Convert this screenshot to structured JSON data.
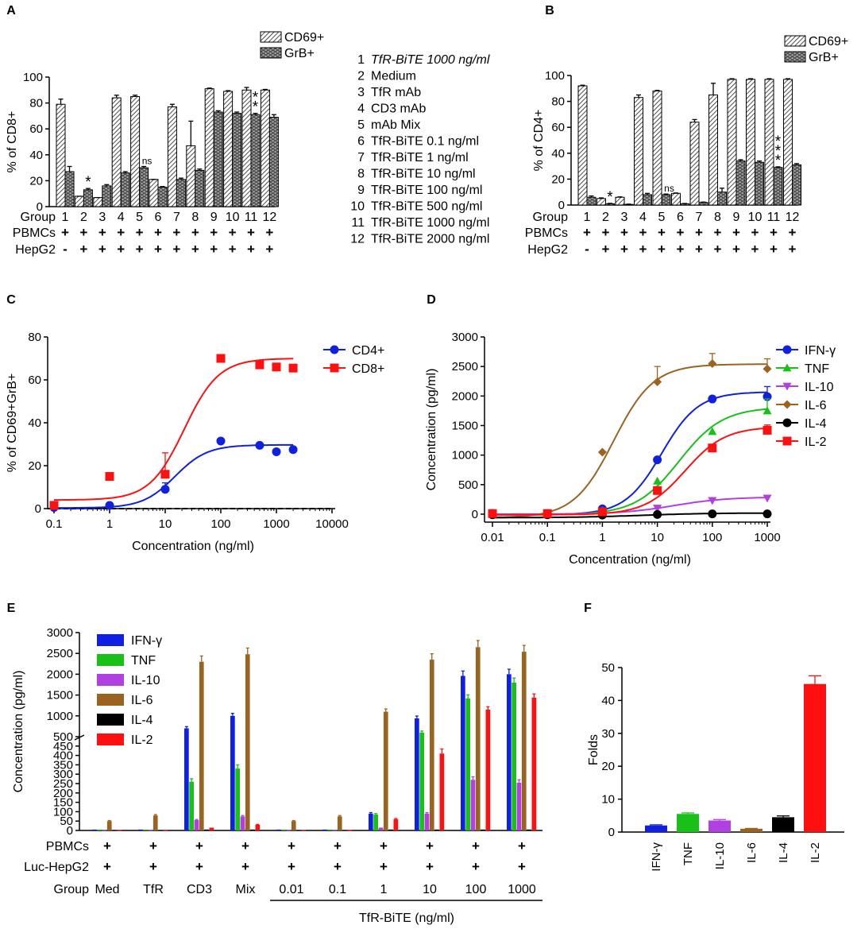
{
  "colors": {
    "IFN": "#1020e0",
    "TNF": "#18c018",
    "IL10": "#b040e0",
    "IL6": "#9a6420",
    "IL4": "#000000",
    "IL2": "#ff1010"
  },
  "chart_data": [
    {
      "panel": "A",
      "type": "bar",
      "ylabel": "% of CD8+",
      "ylim": [
        0,
        100
      ],
      "yticks": [
        0,
        20,
        40,
        60,
        80,
        100
      ],
      "legend": [
        "CD69+",
        "GrB+"
      ],
      "groups": [
        "1",
        "2",
        "3",
        "4",
        "5",
        "6",
        "7",
        "8",
        "9",
        "10",
        "11",
        "12"
      ],
      "row_labels": [
        "Group",
        "PBMCs",
        "HepG2"
      ],
      "pbmcs": [
        "+",
        "+",
        "+",
        "+",
        "+",
        "+",
        "+",
        "+",
        "+",
        "+",
        "+",
        "+"
      ],
      "hepg2": [
        "-",
        "+",
        "+",
        "+",
        "+",
        "+",
        "+",
        "+",
        "+",
        "+",
        "+",
        "+"
      ],
      "series": [
        {
          "name": "CD69+",
          "values": [
            79,
            8,
            7,
            84,
            85,
            21,
            77,
            47,
            91,
            89,
            90,
            90
          ],
          "errors": [
            4,
            0,
            0,
            2,
            1,
            0,
            2,
            19,
            0.5,
            0.5,
            2,
            0.5
          ]
        },
        {
          "name": "GrB+",
          "values": [
            27,
            13,
            16,
            26,
            30,
            15,
            21,
            28,
            73,
            72,
            71,
            69
          ],
          "errors": [
            4,
            1,
            1,
            1,
            1,
            0.5,
            1,
            1,
            1,
            1,
            1,
            2
          ]
        }
      ],
      "annotations": [
        {
          "group": "2",
          "text": "*"
        },
        {
          "group": "5",
          "text": "ns"
        },
        {
          "group": "11",
          "text": "*"
        },
        {
          "group": "11",
          "text": "*"
        }
      ],
      "group_key": [
        {
          "n": "1",
          "label": "TfR-BiTE 1000 ng/ml"
        },
        {
          "n": "2",
          "label": "Medium"
        },
        {
          "n": "3",
          "label": "TfR mAb"
        },
        {
          "n": "4",
          "label": "CD3 mAb"
        },
        {
          "n": "5",
          "label": "mAb Mix"
        },
        {
          "n": "6",
          "label": "TfR-BiTE 0.1 ng/ml"
        },
        {
          "n": "7",
          "label": "TfR-BiTE 1 ng/ml"
        },
        {
          "n": "8",
          "label": "TfR-BiTE 10 ng/ml"
        },
        {
          "n": "9",
          "label": "TfR-BiTE 100 ng/ml"
        },
        {
          "n": "10",
          "label": "TfR-BiTE 500 ng/ml"
        },
        {
          "n": "11",
          "label": "TfR-BiTE 1000 ng/ml"
        },
        {
          "n": "12",
          "label": "TfR-BiTE 2000 ng/ml"
        }
      ]
    },
    {
      "panel": "B",
      "type": "bar",
      "ylabel": "% of CD4+",
      "ylim": [
        0,
        100
      ],
      "yticks": [
        0,
        20,
        40,
        60,
        80,
        100
      ],
      "legend": [
        "CD69+",
        "GrB+"
      ],
      "groups": [
        "1",
        "2",
        "3",
        "4",
        "5",
        "6",
        "7",
        "8",
        "9",
        "10",
        "11",
        "12"
      ],
      "row_labels": [
        "Group",
        "PBMCs",
        "HepG2"
      ],
      "pbmcs": [
        "+",
        "+",
        "+",
        "+",
        "+",
        "+",
        "+",
        "+",
        "+",
        "+",
        "+",
        "+"
      ],
      "hepg2": [
        "-",
        "+",
        "+",
        "+",
        "+",
        "+",
        "+",
        "+",
        "+",
        "+",
        "+",
        "+"
      ],
      "series": [
        {
          "name": "CD69+",
          "values": [
            92,
            5,
            6,
            83,
            88,
            9,
            64,
            85,
            97,
            97,
            97,
            97
          ],
          "errors": [
            0.5,
            0.5,
            0.3,
            2,
            0.5,
            0.3,
            2,
            9,
            0.5,
            0.5,
            0.5,
            0.5
          ]
        },
        {
          "name": "GrB+",
          "values": [
            6,
            1,
            0.5,
            8,
            8,
            1,
            2,
            10,
            34,
            33,
            29,
            31
          ],
          "errors": [
            1,
            0.3,
            0.2,
            1,
            0.5,
            0.2,
            0.3,
            3,
            1,
            1,
            0.5,
            1
          ]
        }
      ],
      "annotations": [
        {
          "group": "2",
          "text": "*"
        },
        {
          "group": "5",
          "text": "ns"
        },
        {
          "group": "11",
          "text": "*"
        },
        {
          "group": "11",
          "text": "*"
        },
        {
          "group": "11",
          "text": "*"
        }
      ]
    },
    {
      "panel": "C",
      "type": "scatter",
      "xlabel": "Concentration (ng/ml)",
      "ylabel": "% of CD69+GrB+",
      "xscale": "log",
      "xlim": [
        0.1,
        10000
      ],
      "ylim": [
        0,
        80
      ],
      "xticks": [
        "0.1",
        "1",
        "10",
        "100",
        "1000",
        "10000"
      ],
      "yticks": [
        0,
        20,
        40,
        60,
        80
      ],
      "series": [
        {
          "name": "CD4+",
          "color": "#1020e0",
          "marker": "circle",
          "x": [
            0.1,
            1,
            10,
            100,
            500,
            1000,
            2000
          ],
          "y": [
            0.5,
            1.5,
            9,
            31.5,
            29.5,
            26.5,
            27.5
          ],
          "err": [
            0,
            0,
            3,
            0,
            0,
            0,
            0
          ],
          "fit": {
            "bottom": 0.3,
            "top": 29.7,
            "ec50": 15,
            "hill": 1.5
          }
        },
        {
          "name": "CD8+",
          "color": "#ff1010",
          "marker": "square",
          "x": [
            0.1,
            1,
            10,
            100,
            500,
            1000,
            2000
          ],
          "y": [
            1.5,
            15,
            16,
            70,
            67,
            66,
            65.5
          ],
          "err": [
            0,
            0,
            10,
            0,
            0,
            1.5,
            0
          ],
          "fit": {
            "bottom": 4,
            "top": 70,
            "ec50": 22,
            "hill": 1.4
          }
        }
      ],
      "baseline": 0
    },
    {
      "panel": "D",
      "type": "scatter",
      "xlabel": "Concentration (ng/ml)",
      "ylabel": "Concentration (pg/ml)",
      "xscale": "log",
      "xlim": [
        0.01,
        1000
      ],
      "ylim": [
        0,
        3000
      ],
      "xticks": [
        "0.01",
        "0.1",
        "1",
        "10",
        "100",
        "1000"
      ],
      "yticks": [
        0,
        500,
        1000,
        1500,
        2000,
        2500,
        3000
      ],
      "series": [
        {
          "name": "IFN-γ",
          "key": "IFN",
          "marker": "circle",
          "x": [
            0.01,
            0.1,
            1,
            10,
            100,
            1000
          ],
          "y": [
            10,
            10,
            90,
            920,
            1950,
            1990
          ],
          "err": [
            0,
            0,
            0,
            0,
            0,
            170
          ],
          "fit": {
            "bottom": -10,
            "top": 2070,
            "ec50": 12,
            "hill": 1.3
          }
        },
        {
          "name": "TNF",
          "key": "TNF",
          "marker": "triangle",
          "x": [
            0.01,
            0.1,
            1,
            10,
            100,
            1000
          ],
          "y": [
            10,
            10,
            60,
            560,
            1400,
            1750
          ],
          "err": [
            0,
            0,
            0,
            0,
            0,
            200
          ],
          "fit": {
            "bottom": -10,
            "top": 1810,
            "ec50": 25,
            "hill": 1.1
          }
        },
        {
          "name": "IL-10",
          "key": "IL10",
          "marker": "triangle-down",
          "x": [
            0.01,
            0.1,
            1,
            10,
            100,
            1000
          ],
          "y": [
            5,
            5,
            15,
            100,
            230,
            270
          ],
          "err": [
            0,
            0,
            0,
            0,
            0,
            0
          ],
          "fit": {
            "bottom": 0,
            "top": 290,
            "ec50": 20,
            "hill": 0.9
          }
        },
        {
          "name": "IL-6",
          "key": "IL6",
          "marker": "diamond",
          "x": [
            0.01,
            0.1,
            1,
            10,
            100,
            1000
          ],
          "y": [
            -10,
            -10,
            1050,
            2240,
            2550,
            2460
          ],
          "err": [
            0,
            0,
            0,
            260,
            170,
            170
          ],
          "fit": {
            "bottom": -60,
            "top": 2540,
            "ec50": 1.6,
            "hill": 1.2
          }
        },
        {
          "name": "IL-4",
          "key": "IL4",
          "marker": "circle",
          "x": [
            0.01,
            0.1,
            1,
            10,
            100,
            1000
          ],
          "y": [
            -10,
            -10,
            -15,
            -5,
            5,
            5
          ],
          "err": [
            0,
            0,
            0,
            0,
            0,
            0
          ],
          "fit": {
            "bottom": -60,
            "top": 20,
            "ec50": 5,
            "hill": 0.7
          }
        },
        {
          "name": "IL-2",
          "key": "IL2",
          "marker": "square",
          "x": [
            0.01,
            0.1,
            1,
            10,
            100,
            1000
          ],
          "y": [
            10,
            10,
            40,
            400,
            1120,
            1420
          ],
          "err": [
            0,
            0,
            0,
            0,
            0,
            90
          ],
          "fit": {
            "bottom": -10,
            "top": 1480,
            "ec50": 32,
            "hill": 1.2
          }
        }
      ]
    },
    {
      "panel": "E",
      "type": "bar",
      "ylabel": "Concentration (pg/ml)",
      "axis_break": true,
      "y_lower_ticks": [
        0,
        50,
        100,
        150,
        200,
        250,
        300,
        350,
        400,
        450,
        500
      ],
      "y_upper_ticks": [
        500,
        1000,
        1500,
        2000,
        2500,
        3000
      ],
      "groups": [
        "Med",
        "TfR",
        "CD3",
        "Mix",
        "0.01",
        "0.1",
        "1",
        "10",
        "100",
        "1000"
      ],
      "row_labels": [
        "PBMCs",
        "Luc-HepG2",
        "Group"
      ],
      "pbmcs": [
        "+",
        "+",
        "+",
        "+",
        "+",
        "+",
        "+",
        "+",
        "+",
        "+"
      ],
      "luc_hepg2": [
        "+",
        "+",
        "+",
        "+",
        "+",
        "+",
        "+",
        "+",
        "+",
        "+"
      ],
      "bracket_label": "TfR-BiTE (ng/ml)",
      "series": [
        {
          "name": "IFN-γ",
          "key": "IFN",
          "values": [
            5,
            5,
            700,
            1000,
            5,
            5,
            90,
            940,
            1960,
            2000
          ]
        },
        {
          "name": "TNF",
          "key": "TNF",
          "values": [
            5,
            5,
            260,
            330,
            5,
            5,
            85,
            600,
            1420,
            1800
          ]
        },
        {
          "name": "IL-10",
          "key": "IL10",
          "values": [
            3,
            3,
            55,
            75,
            3,
            3,
            15,
            90,
            270,
            255
          ]
        },
        {
          "name": "IL-6",
          "key": "IL6",
          "values": [
            50,
            80,
            2300,
            2480,
            50,
            75,
            1100,
            2350,
            2650,
            2540
          ]
        },
        {
          "name": "IL-4",
          "key": "IL4",
          "values": [
            2,
            2,
            5,
            5,
            2,
            2,
            5,
            5,
            5,
            5
          ]
        },
        {
          "name": "IL-2",
          "key": "IL2",
          "values": [
            3,
            3,
            15,
            30,
            3,
            3,
            60,
            410,
            1150,
            1440
          ]
        }
      ]
    },
    {
      "panel": "F",
      "type": "bar",
      "ylabel": "Folds",
      "ylim": [
        0,
        50
      ],
      "yticks": [
        0,
        10,
        20,
        30,
        40,
        50
      ],
      "categories": [
        "IFN-γ",
        "TNF",
        "IL-10",
        "IL-6",
        "IL-4",
        "IL-2"
      ],
      "keys": [
        "IFN",
        "TNF",
        "IL10",
        "IL6",
        "IL4",
        "IL2"
      ],
      "values": [
        2,
        5.5,
        3.5,
        1,
        4.5,
        45
      ],
      "errors": [
        0.2,
        0.3,
        0.3,
        0.1,
        0.4,
        2.5
      ]
    }
  ]
}
